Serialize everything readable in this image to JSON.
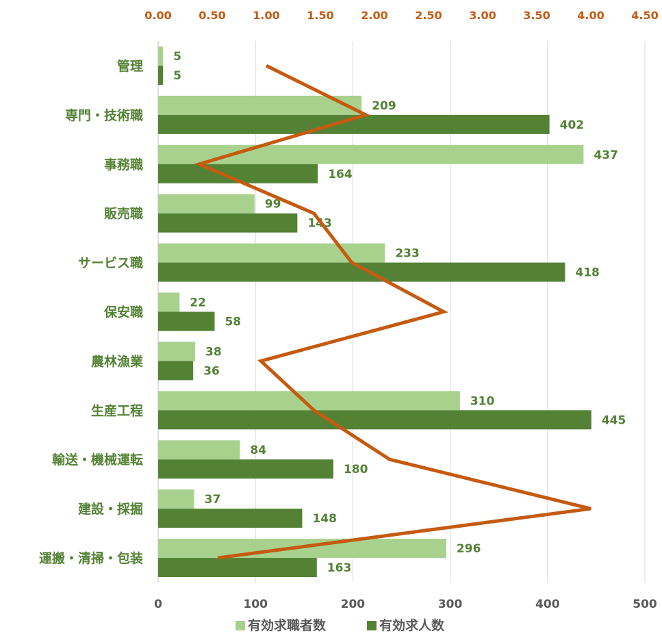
{
  "chart_data": {
    "type": "bar",
    "orientation": "horizontal",
    "categories": [
      "管理",
      "専門・技術職",
      "事務職",
      "販売職",
      "サービス職",
      "保安職",
      "農林漁業",
      "生産工程",
      "輸送・機械運転",
      "建設・採掘",
      "運搬・清掃・包装"
    ],
    "series": [
      {
        "name": "有効求職者数",
        "axis": "bottom",
        "color": "#a9d18e",
        "values": [
          5,
          209,
          437,
          99,
          233,
          22,
          38,
          310,
          84,
          37,
          296
        ]
      },
      {
        "name": "有効求人数",
        "axis": "bottom",
        "color": "#548235",
        "values": [
          5,
          402,
          164,
          143,
          418,
          58,
          36,
          445,
          180,
          148,
          163
        ]
      },
      {
        "axis": "top",
        "type": "line",
        "color": "#c55a11",
        "values": [
          1.0,
          1.92,
          0.38,
          1.44,
          1.79,
          2.64,
          0.95,
          1.44,
          2.14,
          4.0,
          0.55
        ]
      }
    ],
    "xlim_bottom": [
      0,
      500
    ],
    "xticks_bottom": [
      "0",
      "100",
      "200",
      "300",
      "400",
      "500"
    ],
    "xlim_top": [
      0,
      4.5
    ],
    "xticks_top": [
      "0.00",
      "0.50",
      "1.00",
      "1.50",
      "2.00",
      "2.50",
      "3.00",
      "3.50",
      "4.00",
      "4.50"
    ],
    "grid": true,
    "legend_position": "bottom",
    "legend": [
      "有効求職者数",
      "有効求人数"
    ]
  }
}
